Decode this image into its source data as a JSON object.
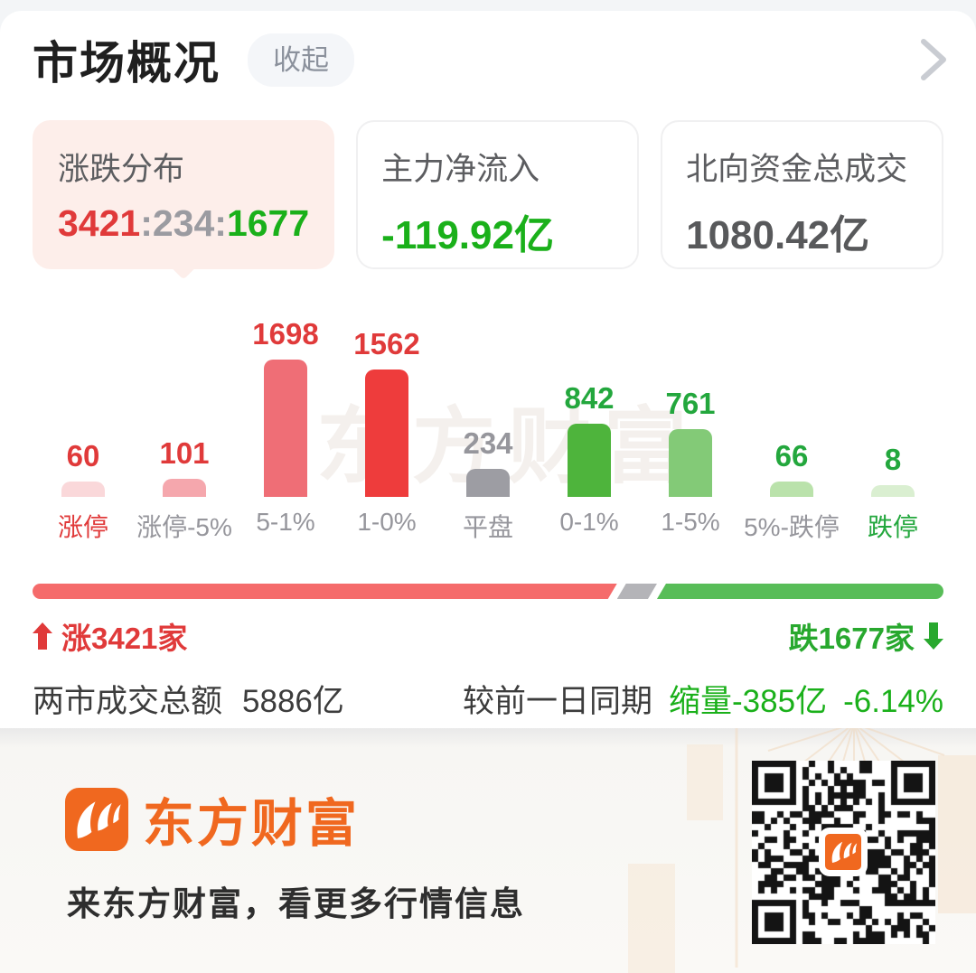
{
  "header": {
    "title": "市场概况",
    "collapse_label": "收起"
  },
  "summary_cards": {
    "distribution": {
      "title": "涨跌分布",
      "up": "3421",
      "flat": "234",
      "down": "1677",
      "separator": ":"
    },
    "main_inflow": {
      "title": "主力净流入",
      "value": "-119.92亿"
    },
    "northbound": {
      "title": "北向资金总成交",
      "value": "1080.42亿"
    }
  },
  "chart_data": {
    "type": "bar",
    "title": "涨跌分布",
    "categories": [
      "涨停",
      "涨停-5%",
      "5-1%",
      "1-0%",
      "平盘",
      "0-1%",
      "1-5%",
      "5%-跌停",
      "跌停"
    ],
    "values": [
      60,
      101,
      1698,
      1562,
      234,
      842,
      761,
      66,
      8
    ],
    "bar_colors": [
      "#fad8da",
      "#f5a7ad",
      "#ef6e76",
      "#ee3c3c",
      "#9d9da3",
      "#4eb43c",
      "#83ca77",
      "#bae2ab",
      "#daefd1"
    ],
    "value_label_colors": [
      "#e03a3a",
      "#e03a3a",
      "#e03a3a",
      "#e03a3a",
      "#96969c",
      "#23a73d",
      "#23a73d",
      "#23a73d",
      "#23a73d"
    ],
    "category_label_colors": [
      "#e03a3a",
      "#96969c",
      "#96969c",
      "#96969c",
      "#96969c",
      "#96969c",
      "#96969c",
      "#96969c",
      "#23a73d"
    ],
    "ylim": [
      0,
      1698
    ],
    "grid": false,
    "legend": false
  },
  "breadth": {
    "up": 3421,
    "flat": 234,
    "down": 1677,
    "up_label": "涨3421家",
    "down_label": "跌1677家"
  },
  "turnover": {
    "label": "两市成交总额",
    "value": "5886亿",
    "compare_label": "较前一日同期",
    "change_label": "缩量-385亿",
    "change_pct": "-6.14%"
  },
  "watermark": {
    "text": "东方财富"
  },
  "footer": {
    "brand": "东方财富",
    "tagline": "来东方财富，看更多行情信息"
  },
  "colors": {
    "up_red": "#e03a3a",
    "down_green": "#1ab01a",
    "flat_gray": "#9b9ba1",
    "brand_orange": "#f0681f",
    "breadth_red": "#f56b6b",
    "breadth_gray": "#b4b4b8",
    "breadth_green": "#58bd58"
  }
}
